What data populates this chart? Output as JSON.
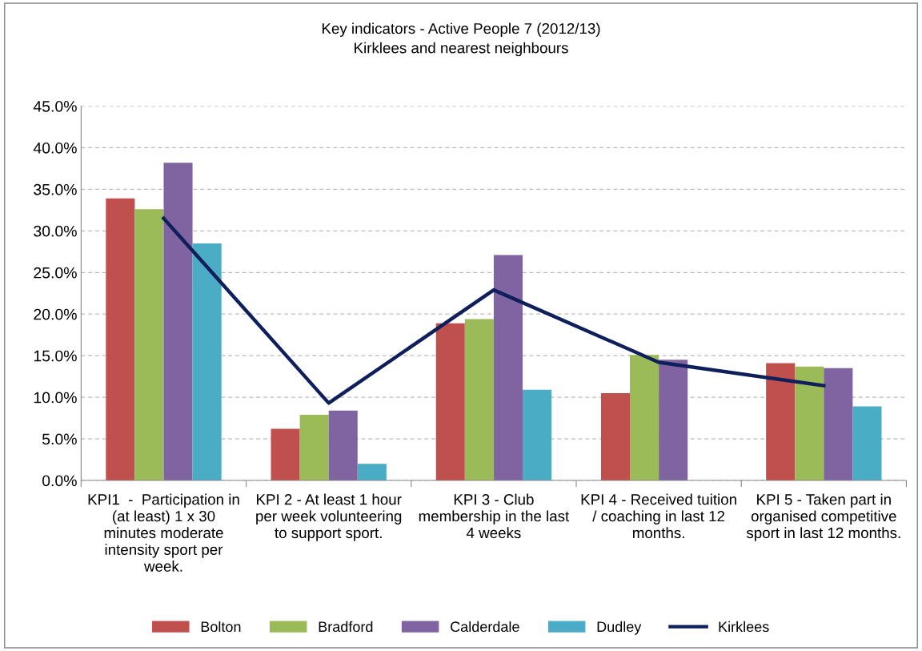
{
  "chart_data": {
    "type": "bar",
    "title": "Key indicators - Active People 7 (2012/13)\nKirklees and nearest neighbours",
    "categories": [
      "KPI1  -  Participation in (at least) 1 x 30 minutes moderate intensity sport per week.",
      "KPI 2 - At least 1 hour per week volunteering to support sport.",
      "KPI 3 - Club membership in the last 4 weeks",
      "KPI 4 - Received tuition / coaching in last 12 months.",
      "KPI 5 - Taken part in organised competitive sport in last 12 months."
    ],
    "series": [
      {
        "name": "Bolton",
        "color": "#c0504d",
        "values": [
          33.9,
          6.2,
          18.9,
          10.5,
          14.1
        ]
      },
      {
        "name": "Bradford",
        "color": "#9bbb59",
        "values": [
          32.6,
          7.9,
          19.4,
          15.1,
          13.7
        ]
      },
      {
        "name": "Calderdale",
        "color": "#8064a2",
        "values": [
          38.2,
          8.4,
          27.1,
          14.5,
          13.5
        ]
      },
      {
        "name": "Dudley",
        "color": "#4bacc6",
        "values": [
          28.5,
          2.0,
          10.9,
          null,
          8.9
        ]
      },
      {
        "name": "Kirklees",
        "type": "line",
        "color": "#0f1f5c",
        "values": [
          31.5,
          9.3,
          22.9,
          14.2,
          11.4
        ]
      }
    ],
    "ylim": [
      0,
      45
    ],
    "yticks": [
      {
        "value": 0,
        "label": "0.0%"
      },
      {
        "value": 5,
        "label": "5.0%"
      },
      {
        "value": 10,
        "label": "10.0%"
      },
      {
        "value": 15,
        "label": "15.0%"
      },
      {
        "value": 20,
        "label": "20.0%"
      },
      {
        "value": 25,
        "label": "25.0%"
      },
      {
        "value": 30,
        "label": "30.0%"
      },
      {
        "value": 35,
        "label": "35.0%"
      },
      {
        "value": 40,
        "label": "40.0%"
      },
      {
        "value": 45,
        "label": "45.0%"
      }
    ],
    "grid": "y",
    "legend": "bottom"
  }
}
